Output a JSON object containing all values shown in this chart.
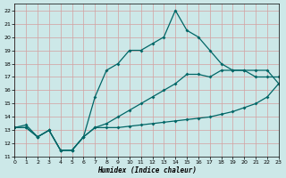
{
  "background_color": "#cce8e8",
  "grid_color": "#d4a0a0",
  "line_color": "#006666",
  "xlabel": "Humidex (Indice chaleur)",
  "xlim": [
    0,
    23
  ],
  "ylim": [
    11,
    22.5
  ],
  "yticks": [
    11,
    12,
    13,
    14,
    15,
    16,
    17,
    18,
    19,
    20,
    21,
    22
  ],
  "xticks": [
    0,
    1,
    2,
    3,
    4,
    5,
    6,
    7,
    8,
    9,
    10,
    11,
    12,
    13,
    14,
    15,
    16,
    17,
    18,
    19,
    20,
    21,
    22,
    23
  ],
  "curve1_x": [
    0,
    1,
    2,
    3,
    4,
    5,
    6,
    7,
    8,
    9,
    10,
    11,
    12,
    13,
    14,
    15,
    16,
    17,
    18,
    19,
    20,
    21,
    22,
    23
  ],
  "curve1_y": [
    13.2,
    13.4,
    12.5,
    13.0,
    11.5,
    11.5,
    12.5,
    15.5,
    17.5,
    18.0,
    19.0,
    19.0,
    19.5,
    20.0,
    22.0,
    20.5,
    20.0,
    19.0,
    18.0,
    17.5,
    17.5,
    17.0,
    17.0,
    17.0
  ],
  "curve2_x": [
    0,
    1,
    2,
    3,
    4,
    5,
    6,
    7,
    8,
    9,
    10,
    11,
    12,
    13,
    14,
    15,
    16,
    17,
    18,
    19,
    20,
    21,
    22,
    23
  ],
  "curve2_y": [
    13.2,
    13.2,
    12.5,
    13.0,
    11.5,
    11.5,
    12.5,
    13.2,
    13.5,
    14.0,
    14.5,
    15.0,
    15.5,
    16.0,
    16.5,
    17.2,
    17.2,
    17.0,
    17.5,
    17.5,
    17.5,
    17.5,
    17.5,
    16.5
  ],
  "curve3_x": [
    0,
    1,
    2,
    3,
    4,
    5,
    6,
    7,
    8,
    9,
    10,
    11,
    12,
    13,
    14,
    15,
    16,
    17,
    18,
    19,
    20,
    21,
    22,
    23
  ],
  "curve3_y": [
    13.2,
    13.2,
    12.5,
    13.0,
    11.5,
    11.5,
    12.5,
    13.2,
    13.2,
    13.2,
    13.3,
    13.4,
    13.5,
    13.6,
    13.7,
    13.8,
    13.9,
    14.0,
    14.2,
    14.4,
    14.7,
    15.0,
    15.5,
    16.5
  ]
}
